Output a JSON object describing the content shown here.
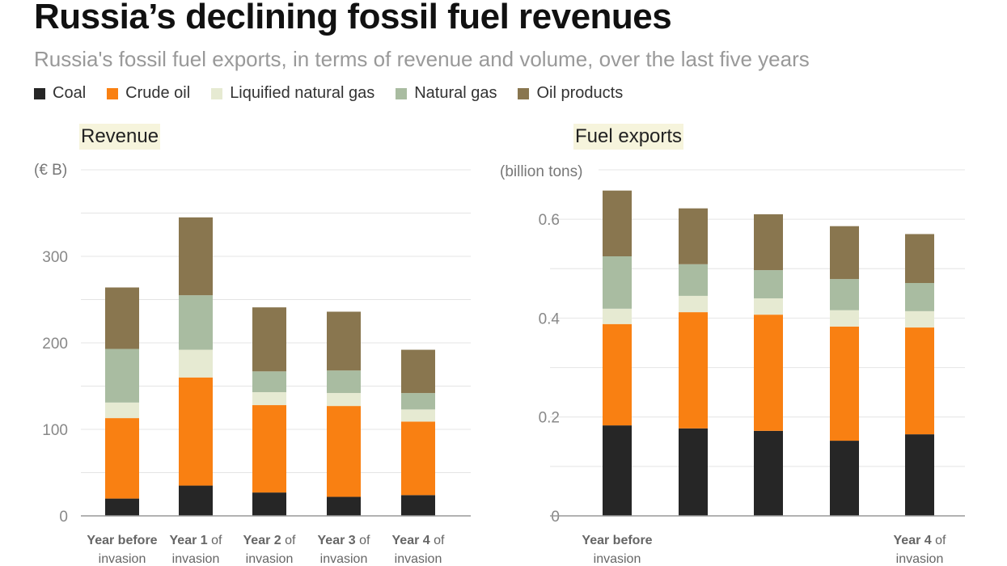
{
  "title": "Russia’s declining fossil fuel revenues",
  "subtitle": "Russia's fossil fuel exports, in terms of revenue and volume, over the last five years",
  "legend": [
    {
      "label": "Coal",
      "color": "#262626"
    },
    {
      "label": "Crude oil",
      "color": "#f98012"
    },
    {
      "label": "Liquified natural gas",
      "color": "#e6ead2"
    },
    {
      "label": "Natural gas",
      "color": "#a9bca1"
    },
    {
      "label": "Oil products",
      "color": "#89764f"
    }
  ],
  "chart_data": [
    {
      "type": "bar",
      "stacked": true,
      "title": "Revenue",
      "ylabel": "(€ B)",
      "ylim": [
        0,
        400
      ],
      "yticks": [
        0,
        100,
        200,
        300
      ],
      "grid_step": 50,
      "categories": [
        {
          "bold": "Year before",
          "rest": "",
          "line2": "invasion"
        },
        {
          "bold": "Year 1",
          "rest": " of",
          "line2": "invasion"
        },
        {
          "bold": "Year 2",
          "rest": " of",
          "line2": "invasion"
        },
        {
          "bold": "Year 3",
          "rest": " of",
          "line2": "invasion"
        },
        {
          "bold": "Year 4",
          "rest": " of",
          "line2": "invasion"
        }
      ],
      "series": [
        {
          "name": "Coal",
          "values": [
            20,
            35,
            27,
            22,
            24
          ]
        },
        {
          "name": "Crude oil",
          "values": [
            93,
            125,
            101,
            105,
            85
          ]
        },
        {
          "name": "Liquified natural gas",
          "values": [
            18,
            32,
            15,
            15,
            14
          ]
        },
        {
          "name": "Natural gas",
          "values": [
            62,
            63,
            24,
            26,
            19
          ]
        },
        {
          "name": "Oil products",
          "values": [
            71,
            90,
            74,
            68,
            50
          ]
        }
      ]
    },
    {
      "type": "bar",
      "stacked": true,
      "title": "Fuel exports",
      "ylabel": "(billion tons)",
      "ylim": [
        0,
        0.7
      ],
      "yticks": [
        0,
        0.2,
        0.4,
        0.6
      ],
      "grid_step": 0.1,
      "categories": [
        {
          "bold": "Year before",
          "rest": "",
          "line2": "invasion"
        },
        {
          "bold": "",
          "rest": "",
          "line2": ""
        },
        {
          "bold": "",
          "rest": "",
          "line2": ""
        },
        {
          "bold": "",
          "rest": "",
          "line2": ""
        },
        {
          "bold": "Year 4",
          "rest": " of",
          "line2": "invasion"
        }
      ],
      "series": [
        {
          "name": "Coal",
          "values": [
            0.183,
            0.177,
            0.172,
            0.152,
            0.165
          ]
        },
        {
          "name": "Crude oil",
          "values": [
            0.205,
            0.235,
            0.235,
            0.231,
            0.216
          ]
        },
        {
          "name": "Liquified natural gas",
          "values": [
            0.031,
            0.033,
            0.033,
            0.033,
            0.033
          ]
        },
        {
          "name": "Natural gas",
          "values": [
            0.106,
            0.064,
            0.057,
            0.063,
            0.057
          ]
        },
        {
          "name": "Oil products",
          "values": [
            0.133,
            0.113,
            0.113,
            0.107,
            0.099
          ]
        }
      ]
    }
  ]
}
